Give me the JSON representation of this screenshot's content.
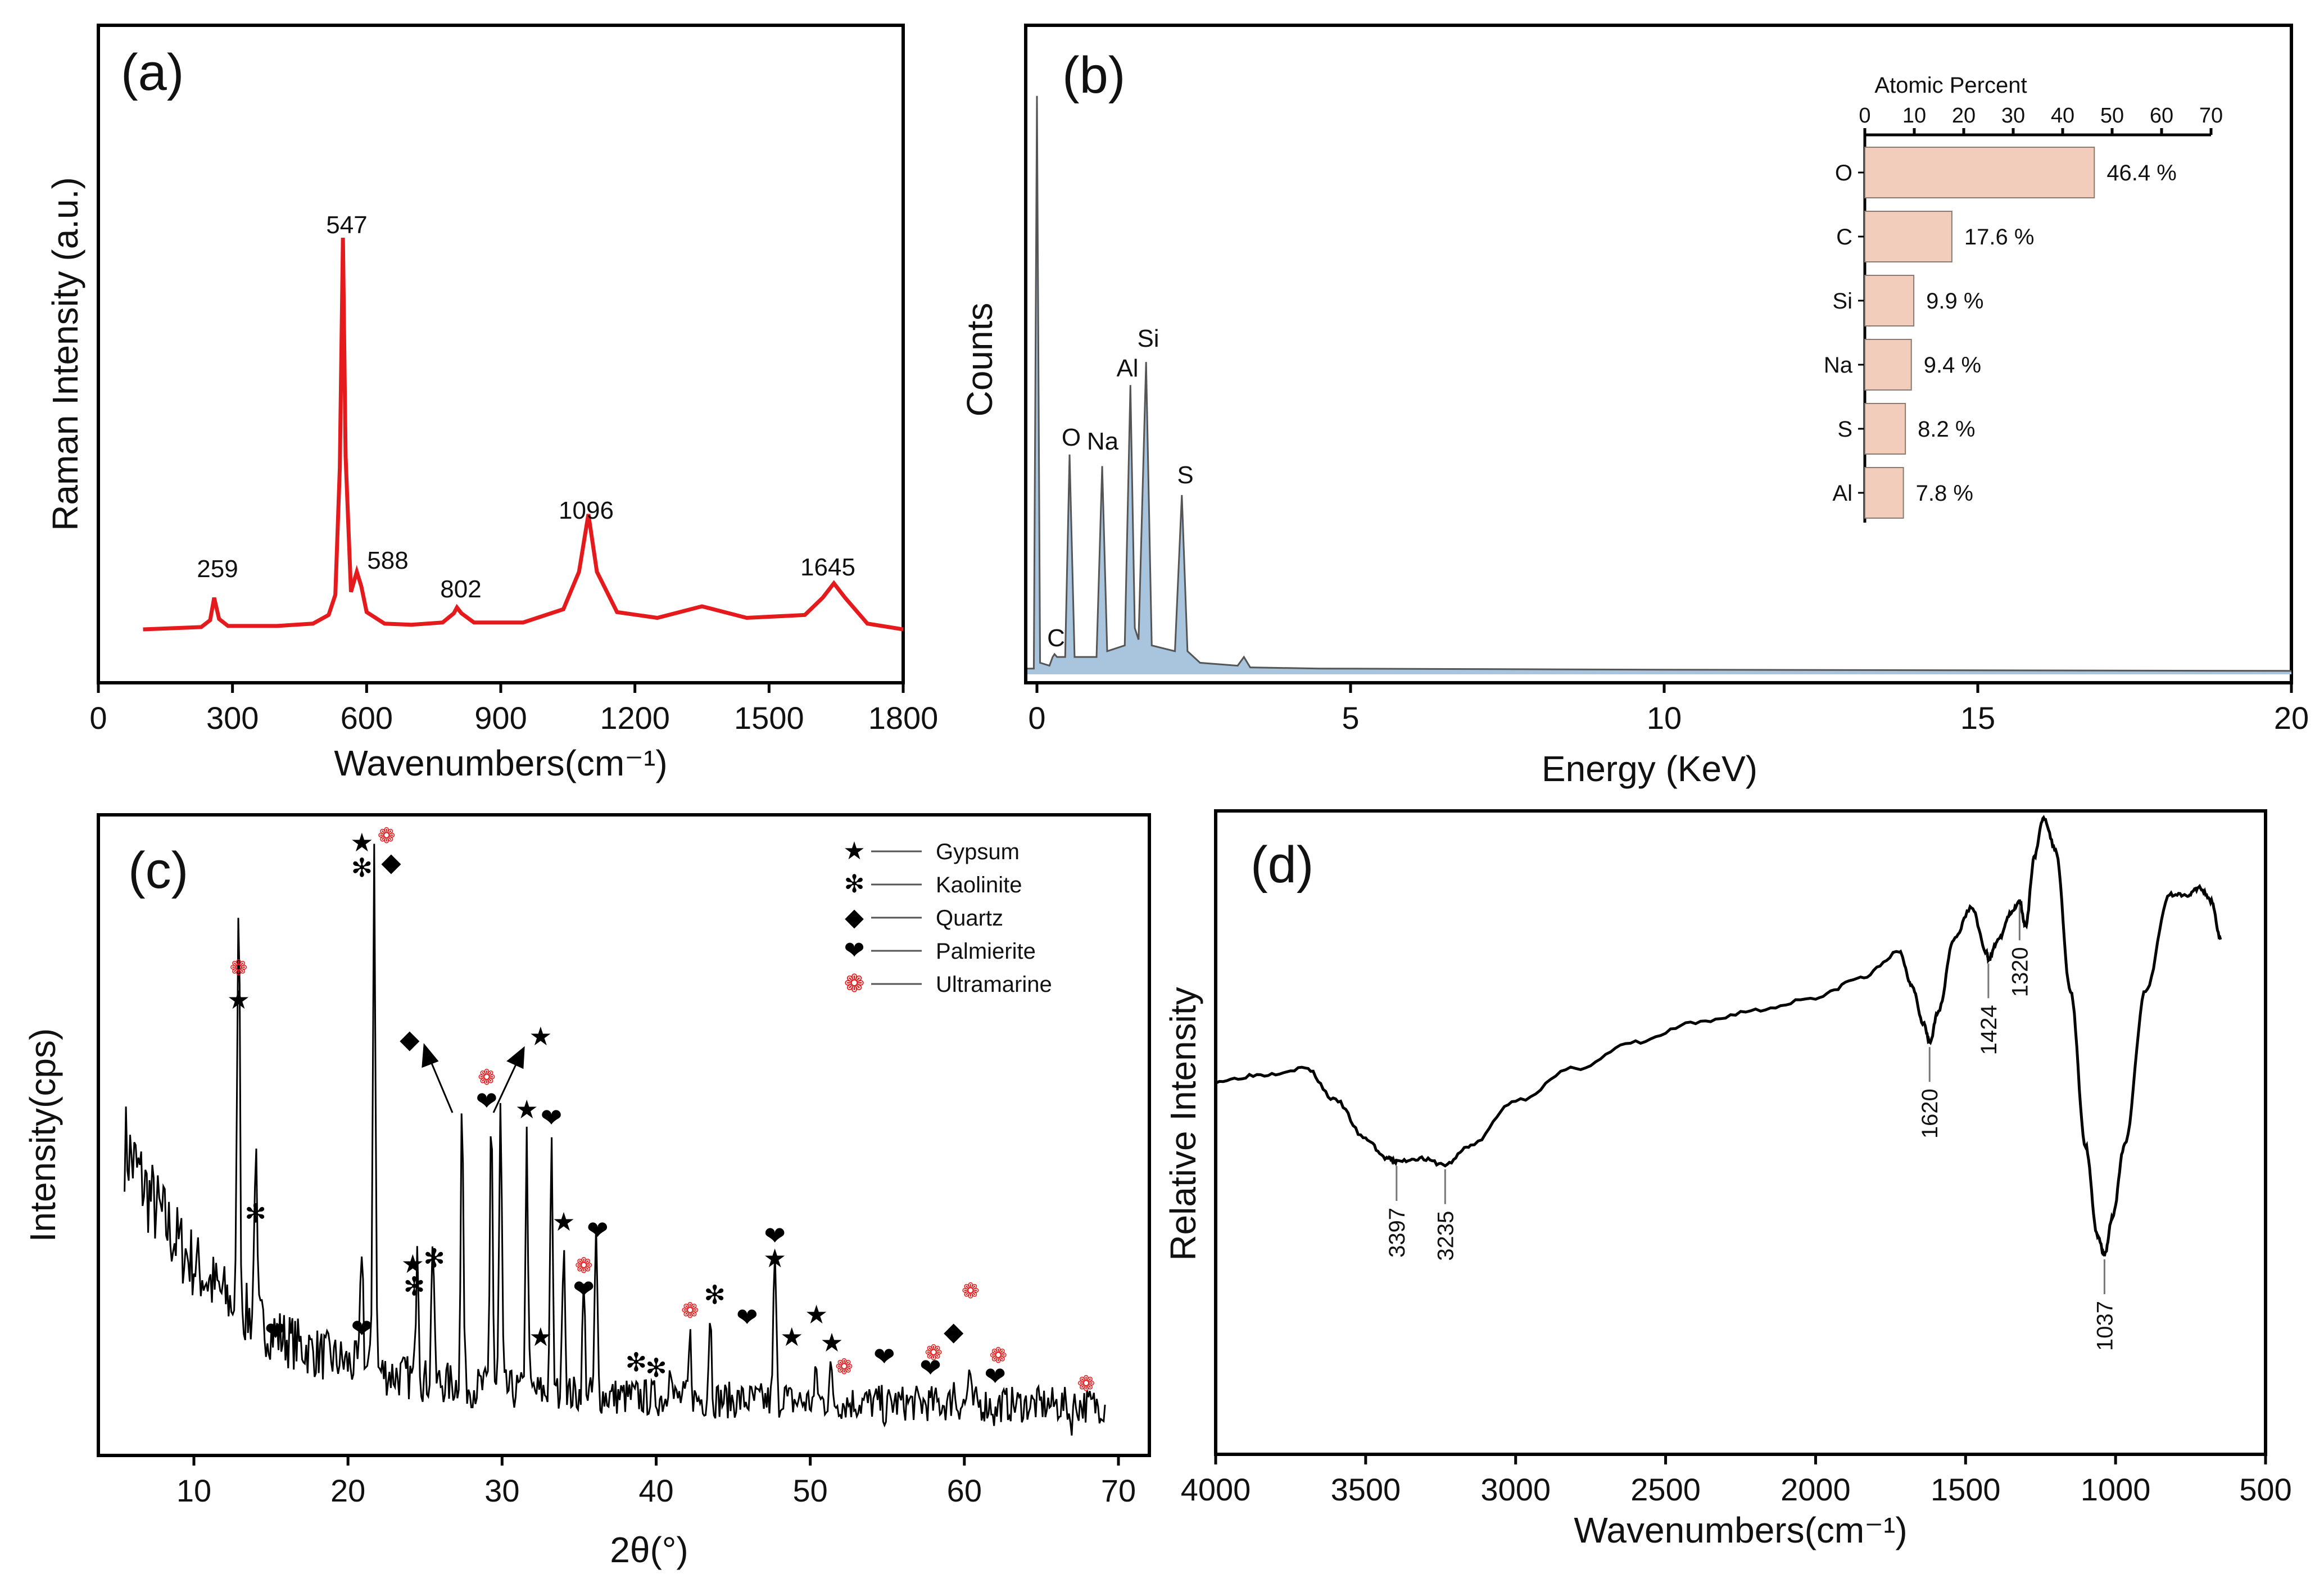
{
  "chart_data": [
    {
      "panel": "(a)",
      "type": "line",
      "xlabel": "Wavenumbers(cm⁻¹)",
      "ylabel": "Raman Intensity (a.u.)",
      "xlim": [
        0,
        1800
      ],
      "xticks": [
        0,
        300,
        600,
        900,
        1200,
        1500,
        1800
      ],
      "series": [
        {
          "name": "Raman",
          "color": "#e41a1c",
          "x": [
            100,
            230,
            250,
            259,
            270,
            290,
            400,
            480,
            515,
            530,
            540,
            547,
            553,
            565,
            578,
            588,
            600,
            640,
            700,
            770,
            795,
            802,
            812,
            840,
            950,
            1040,
            1075,
            1096,
            1115,
            1160,
            1250,
            1350,
            1450,
            1580,
            1620,
            1645,
            1670,
            1720,
            1800
          ],
          "y": [
            2.0,
            2.4,
            3.6,
            7.5,
            3.8,
            2.6,
            2.6,
            3.0,
            4.5,
            8.0,
            30.0,
            70.0,
            32.0,
            8.5,
            12.0,
            9.5,
            5.0,
            3.0,
            2.8,
            3.2,
            4.8,
            5.8,
            4.8,
            3.2,
            3.2,
            5.5,
            12.0,
            22.0,
            12.0,
            5.0,
            4.0,
            6.0,
            4.0,
            4.5,
            7.5,
            10.0,
            7.5,
            3.0,
            2.0
          ]
        }
      ],
      "ylim": [
        0,
        82
      ],
      "peaks": [
        "259",
        "547",
        "588",
        "802",
        "1096",
        "1645"
      ]
    },
    {
      "panel": "(b)",
      "type": "line",
      "xlabel": "Energy (KeV)",
      "ylabel": "Counts",
      "xlim": [
        -0.2,
        20
      ],
      "xticks": [
        0,
        5,
        10,
        15,
        20
      ],
      "series": [
        {
          "name": "EDS",
          "color": "#4a4a4a",
          "fill": "#a9c4dd",
          "x": [
            -0.2,
            -0.05,
            0,
            0.05,
            0.2,
            0.25,
            0.28,
            0.32,
            0.45,
            0.52,
            0.6,
            0.95,
            1.04,
            1.12,
            1.4,
            1.49,
            1.56,
            1.62,
            1.74,
            1.83,
            2.2,
            2.31,
            2.4,
            2.6,
            3.2,
            3.3,
            3.4,
            4.5,
            10,
            20
          ],
          "y": [
            1,
            1,
            100,
            2,
            1.5,
            3,
            3.5,
            3,
            3,
            38,
            3,
            3,
            36,
            4,
            5,
            50,
            8,
            6,
            54,
            5,
            4,
            31,
            4,
            2,
            1.5,
            3,
            1.2,
            1,
            0.8,
            0.6
          ],
          "ylim": [
            0,
            102
          ]
        }
      ],
      "peaks": [
        "C",
        "O",
        "Na",
        "Al",
        "Si",
        "S"
      ],
      "inset": {
        "type": "bar",
        "title": "Atomic Percent",
        "xlim": [
          0,
          70
        ],
        "xticks": [
          "0",
          "10",
          "20",
          "30",
          "40",
          "50",
          "60",
          "70"
        ],
        "categories": [
          "O",
          "C",
          "Si",
          "Na",
          "S",
          "Al"
        ],
        "values": [
          46.4,
          17.6,
          9.9,
          9.4,
          8.2,
          7.8
        ],
        "labels": [
          "46.4 %",
          "17.6 %",
          "9.9 %",
          "9.4 %",
          "8.2 %",
          "7.8 %"
        ],
        "color": "#f2cdbb"
      }
    },
    {
      "panel": "(c)",
      "type": "line",
      "xlabel": "2θ(°)",
      "ylabel": "Intensity(cps)",
      "xlim": [
        4,
        71
      ],
      "xticks": [
        10,
        20,
        30,
        40,
        50,
        60,
        70
      ],
      "ylim": [
        0,
        100
      ],
      "series": [
        {
          "name": "XRD",
          "color": "#000000"
        }
      ],
      "peaks2theta": [
        12.9,
        14.0,
        20.9,
        21.7,
        24.5,
        25.5,
        27.4,
        29.3,
        29.9,
        31.6,
        33.2,
        34.0,
        35.3,
        36.1,
        40.9,
        42.2,
        43.5,
        47.7,
        48.3,
        50.4,
        51.3,
        54.9,
        58.0,
        59.3,
        60.3,
        62.0,
        66.9
      ],
      "peakHeights": [
        83,
        41,
        33,
        100,
        37,
        37,
        59,
        60,
        59,
        54,
        53,
        40,
        30,
        39,
        20,
        22,
        27,
        37,
        14,
        17,
        18,
        10,
        12,
        15,
        17,
        10,
        9
      ],
      "legend": [
        {
          "symbol": "★",
          "label": "Gypsum",
          "color": "#000000"
        },
        {
          "symbol": "✻",
          "label": "Kaolinite",
          "color": "#000000"
        },
        {
          "symbol": "◆",
          "label": "Quartz",
          "color": "#000000"
        },
        {
          "symbol": "❤",
          "label": "Palmierite",
          "color": "#000000"
        },
        {
          "symbol": "❁",
          "label": "Ultramarine",
          "color": "#e41a1c"
        }
      ]
    },
    {
      "panel": "(d)",
      "type": "line",
      "xlabel": "Wavenumbers(cm⁻¹)",
      "ylabel": "Relative Intensity",
      "xlim": [
        4000,
        500
      ],
      "xticks": [
        4000,
        3500,
        3000,
        2500,
        2000,
        1500,
        1000,
        500
      ],
      "ylim": [
        0,
        100
      ],
      "series": [
        {
          "name": "FTIR",
          "color": "#000000",
          "x": [
            4000,
            3850,
            3700,
            3600,
            3500,
            3430,
            3397,
            3320,
            3235,
            3150,
            3000,
            2800,
            2600,
            2400,
            2200,
            2000,
            1850,
            1720,
            1680,
            1640,
            1620,
            1590,
            1540,
            1480,
            1430,
            1424,
            1390,
            1350,
            1320,
            1300,
            1270,
            1240,
            1200,
            1150,
            1100,
            1060,
            1037,
            1010,
            970,
            900,
            820,
            760,
            720,
            680,
            650
          ],
          "y": [
            58,
            59,
            60,
            55,
            49,
            46,
            45.5,
            46,
            45,
            48,
            55,
            60,
            64,
            67,
            69,
            71,
            74,
            78,
            73,
            67,
            64,
            69,
            80,
            85,
            78,
            77,
            80,
            84,
            86,
            82,
            93,
            99,
            94,
            72,
            48,
            34,
            31,
            37,
            48,
            72,
            87,
            87,
            88,
            86,
            80
          ]
        }
      ],
      "peaks": [
        "3397",
        "3235",
        "1620",
        "1424",
        "1320",
        "1037"
      ]
    }
  ]
}
